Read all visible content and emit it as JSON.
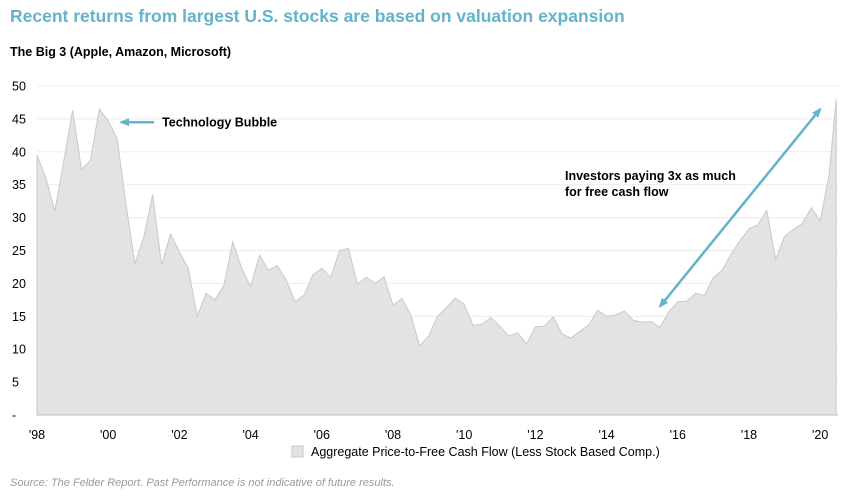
{
  "header": {
    "title": "Recent returns from largest U.S. stocks are based on valuation expansion",
    "subtitle": "The Big 3 (Apple, Amazon, Microsoft)"
  },
  "footer": {
    "source": "Source: The Felder Report. Past Performance is not indicative of future results."
  },
  "colors": {
    "title": "#62b3cb",
    "area_fill": "#e3e3e3",
    "area_stroke": "#c9c9c9",
    "arrow": "#62b3cb",
    "grid": "#ececec"
  },
  "chart_data": {
    "type": "area",
    "title": "",
    "xlabel": "",
    "ylabel": "",
    "xlim": [
      1998.0,
      2020.5
    ],
    "ylim": [
      0,
      50
    ],
    "grid": true,
    "legend_position": "bottom",
    "y_ticks": [
      0,
      5,
      10,
      15,
      20,
      25,
      30,
      35,
      40,
      45,
      50
    ],
    "y_tick_labels": [
      "-",
      "5",
      "10",
      "15",
      "20",
      "25",
      "30",
      "35",
      "40",
      "45",
      "50"
    ],
    "x_ticks": [
      1998,
      2000,
      2002,
      2004,
      2006,
      2008,
      2010,
      2012,
      2014,
      2016,
      2018,
      2020
    ],
    "x_tick_labels": [
      "'98",
      "'00",
      "'02",
      "'04",
      "'06",
      "'08",
      "'10",
      "'12",
      "'14",
      "'16",
      "'18",
      "'20"
    ],
    "series": [
      {
        "name": "Aggregate Price-to-Free Cash Flow (Less Stock Based Comp.)",
        "x": [
          1998.0,
          1998.25,
          1998.5,
          1998.75,
          1999.0,
          1999.25,
          1999.5,
          1999.75,
          2000.0,
          2000.25,
          2000.5,
          2000.75,
          2001.0,
          2001.25,
          2001.5,
          2001.75,
          2002.0,
          2002.25,
          2002.5,
          2002.75,
          2003.0,
          2003.25,
          2003.5,
          2003.75,
          2004.0,
          2004.25,
          2004.5,
          2004.75,
          2005.0,
          2005.25,
          2005.5,
          2005.75,
          2006.0,
          2006.25,
          2006.5,
          2006.75,
          2007.0,
          2007.25,
          2007.5,
          2007.75,
          2008.0,
          2008.25,
          2008.5,
          2008.75,
          2009.0,
          2009.25,
          2009.5,
          2009.75,
          2010.0,
          2010.25,
          2010.5,
          2010.75,
          2011.0,
          2011.25,
          2011.5,
          2011.75,
          2012.0,
          2012.25,
          2012.5,
          2012.75,
          2013.0,
          2013.25,
          2013.5,
          2013.75,
          2014.0,
          2014.25,
          2014.5,
          2014.75,
          2015.0,
          2015.25,
          2015.5,
          2015.75,
          2016.0,
          2016.25,
          2016.5,
          2016.75,
          2017.0,
          2017.25,
          2017.5,
          2017.75,
          2018.0,
          2018.25,
          2018.5,
          2018.75,
          2019.0,
          2019.25,
          2019.5,
          2019.75,
          2020.0,
          2020.25,
          2020.45
        ],
        "values": [
          39.5,
          36,
          31,
          38.5,
          46.3,
          37.3,
          38.7,
          46.5,
          44.7,
          42,
          32,
          23,
          27,
          33.5,
          22.8,
          27.5,
          24.8,
          22.3,
          15,
          18.5,
          17.5,
          19.7,
          26.3,
          22.3,
          19.5,
          24.3,
          22,
          22.7,
          20.5,
          17.2,
          18.2,
          21.3,
          22.3,
          20.9,
          25,
          25.3,
          19.9,
          20.9,
          20,
          21,
          16.7,
          17.7,
          15.2,
          10.5,
          12,
          15,
          16.3,
          17.8,
          16.8,
          13.6,
          13.8,
          14.8,
          13.5,
          12,
          12.5,
          10.8,
          13.4,
          13.5,
          14.9,
          12.3,
          11.7,
          12.7,
          13.7,
          15.9,
          15,
          15.2,
          15.8,
          14.4,
          14.1,
          14.2,
          13.3,
          15.7,
          17.2,
          17.3,
          18.5,
          18.2,
          20.9,
          22,
          24.5,
          26.5,
          28.3,
          28.9,
          31.1,
          23.6,
          27.2,
          28.2,
          29.1,
          31.5,
          29.5,
          36.5,
          48
        ]
      }
    ],
    "annotations": [
      {
        "text": "Technology Bubble",
        "arrow_to": [
          2000.25,
          44.5
        ]
      },
      {
        "text_lines": [
          "Investors paying 3x as much",
          "for free cash flow"
        ],
        "arrow_from": [
          2015.5,
          16.5
        ],
        "arrow_to": [
          2020.0,
          46.5
        ]
      }
    ]
  }
}
